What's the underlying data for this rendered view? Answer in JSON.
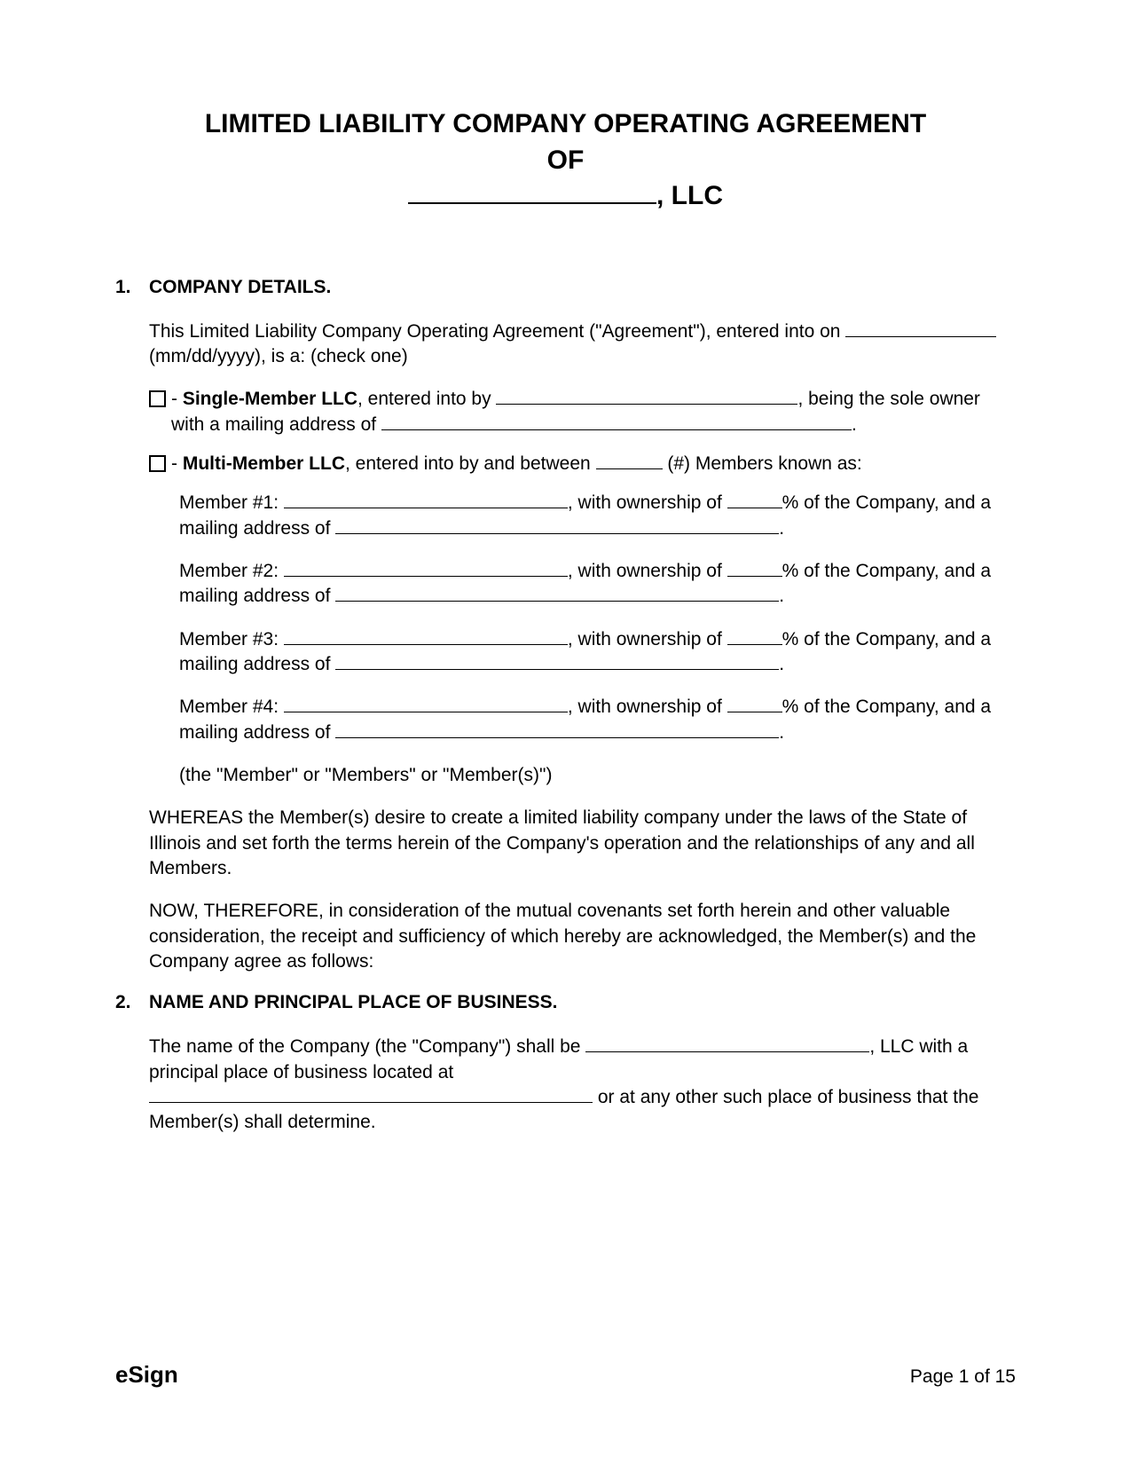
{
  "title": {
    "line1": "LIMITED LIABILITY COMPANY OPERATING AGREEMENT",
    "line2": "OF",
    "suffix": ", LLC"
  },
  "section1": {
    "num": "1.",
    "heading": "COMPANY DETAILS",
    "intro_a": "This Limited Liability Company Operating Agreement (\"Agreement\"), entered into on ",
    "intro_b": " (mm/dd/yyyy), is a: (check one)",
    "single": {
      "label": "Single-Member LLC",
      "text_a": ", entered into by ",
      "text_b": ", being the sole owner with a mailing address of "
    },
    "multi": {
      "label": "Multi-Member LLC",
      "text_a": ", entered into by and between ",
      "text_b": " (#) Members known as:"
    },
    "members": [
      {
        "label": "Member #1: ",
        "mid": ", with ownership of ",
        "pct": "% of the Company, and a mailing address of "
      },
      {
        "label": "Member #2: ",
        "mid": ", with ownership of ",
        "pct": "% of the Company, and a mailing address of "
      },
      {
        "label": "Member #3: ",
        "mid": ", with ownership of ",
        "pct": "% of the Company, and a mailing address of "
      },
      {
        "label": "Member #4: ",
        "mid": ", with ownership of ",
        "pct": "% of the Company, and a mailing address of "
      }
    ],
    "coda": "(the \"Member\" or \"Members\" or \"Member(s)\")",
    "whereas": "WHEREAS the Member(s) desire to create a limited liability company under the laws of the State of Illinois and set forth the terms herein of the Company's operation and the relationships of any and all Members.",
    "now": "NOW, THEREFORE, in consideration of the mutual covenants set forth herein and other valuable consideration, the receipt and sufficiency of which hereby are acknowledged, the Member(s) and the Company agree as follows:"
  },
  "section2": {
    "num": "2.",
    "heading": "NAME AND PRINCIPAL PLACE OF BUSINESS",
    "text_a": "The name of the Company (the \"Company\") shall be ",
    "text_b": ", LLC with a principal place of business located at ",
    "text_c": " or at any other such place of business that the Member(s) shall determine."
  },
  "footer": {
    "brand": "eSign",
    "page": "Page 1 of 15"
  },
  "blanks": {
    "date": 170,
    "single_name": 340,
    "single_addr": 530,
    "multi_count": 75,
    "member_name": 320,
    "member_pct": 62,
    "member_addr": 500,
    "company_name": 320,
    "company_addr": 500
  }
}
